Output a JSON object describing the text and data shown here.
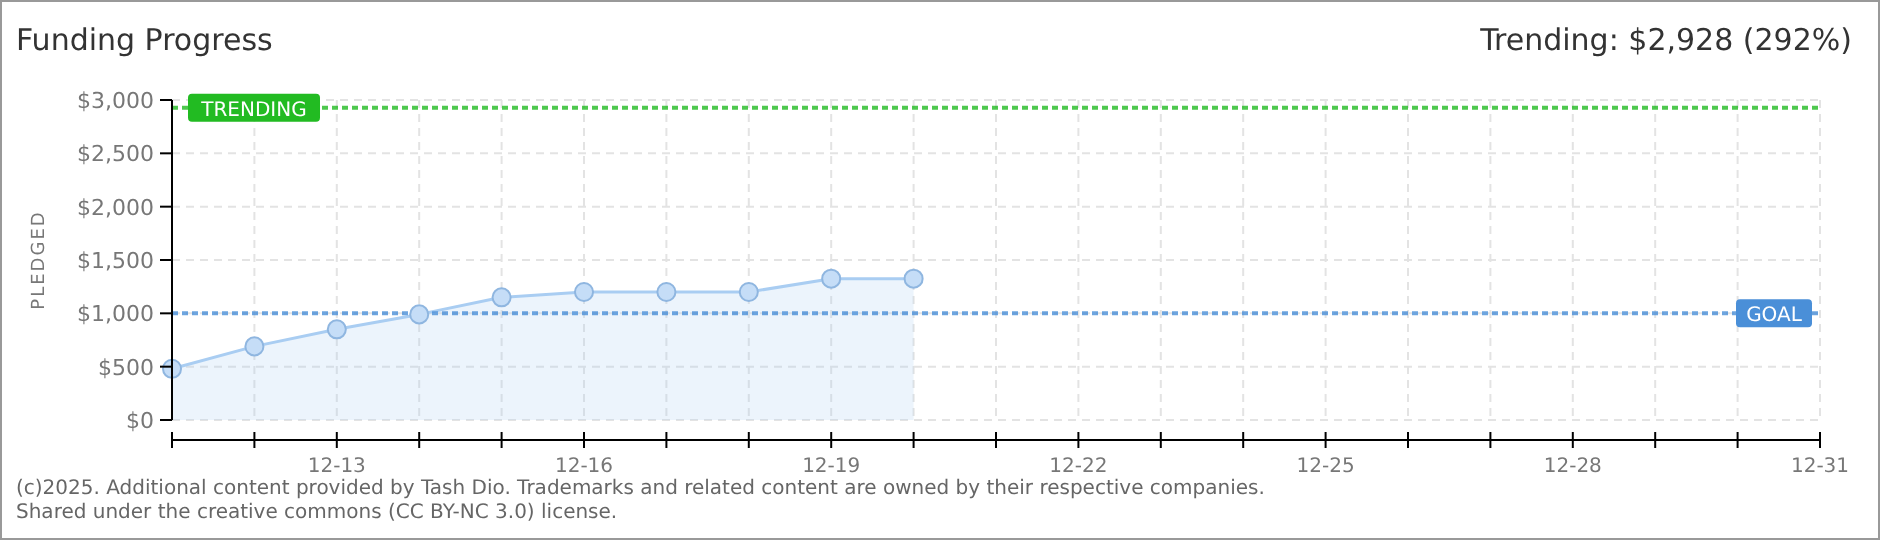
{
  "chart_data": {
    "type": "area",
    "title": "Funding Progress",
    "subtitle": "Trending: $2,928 (292%)",
    "ylabel": "PLEDGED",
    "x": [
      "--12-11",
      "--12-12",
      "--12-13",
      "--12-14",
      "--12-15",
      "--12-16",
      "--12-17",
      "--12-18",
      "--12-19",
      "--12-20"
    ],
    "series": [
      {
        "color": "#a9cdf2",
        "values": [
          480,
          690,
          850,
          990,
          1150,
          1200,
          1200,
          1200,
          1325,
          1325
        ]
      }
    ],
    "xlim": [
      "--12-11",
      "--12-31"
    ],
    "xticks": [
      {
        "value": "--12-11",
        "label": null
      },
      {
        "value": "--12-12",
        "label": null
      },
      {
        "value": "--12-13",
        "label": "12-13"
      },
      {
        "value": "--12-14",
        "label": null
      },
      {
        "value": "--12-15",
        "label": null
      },
      {
        "value": "--12-16",
        "label": "12-16"
      },
      {
        "value": "--12-17",
        "label": null
      },
      {
        "value": "--12-18",
        "label": null
      },
      {
        "value": "--12-19",
        "label": "12-19"
      },
      {
        "value": "--12-20",
        "label": null
      },
      {
        "value": "--12-21",
        "label": null
      },
      {
        "value": "--12-22",
        "label": "12-22"
      },
      {
        "value": "--12-23",
        "label": null
      },
      {
        "value": "--12-24",
        "label": null
      },
      {
        "value": "--12-25",
        "label": "12-25"
      },
      {
        "value": "--12-26",
        "label": null
      },
      {
        "value": "--12-27",
        "label": null
      },
      {
        "value": "--12-28",
        "label": "12-28"
      },
      {
        "value": "--12-29",
        "label": null
      },
      {
        "value": "--12-30",
        "label": null
      },
      {
        "value": "--12-31",
        "label": "12-31"
      }
    ],
    "ylim": [
      0,
      3000
    ],
    "yticks": [
      {
        "value": 0,
        "label": "$0"
      },
      {
        "value": 500,
        "label": "$500"
      },
      {
        "value": 1000,
        "label": "$1,000"
      },
      {
        "value": 1500,
        "label": "$1,500"
      },
      {
        "value": 2000,
        "label": "$2,000"
      },
      {
        "value": 2500,
        "label": "$2,500"
      },
      {
        "value": 3000,
        "label": "$3,000"
      }
    ],
    "grid": true,
    "marker": "circle",
    "line_style": "solid",
    "ref_lines": [
      {
        "axis": "y",
        "value": 1000,
        "label": "GOAL",
        "color": "#4a8fd8",
        "line_style": "dotted"
      },
      {
        "axis": "y",
        "value": 2928,
        "label": "TRENDING",
        "color": "#22bb22",
        "line_style": "dotted"
      }
    ],
    "annotations": [
      "(c)2025. Additional content provided by Tash Dio. Trademarks and related content are owned by their respective companies.",
      "Shared under the creative commons (CC BY-NC 3.0) license."
    ]
  }
}
